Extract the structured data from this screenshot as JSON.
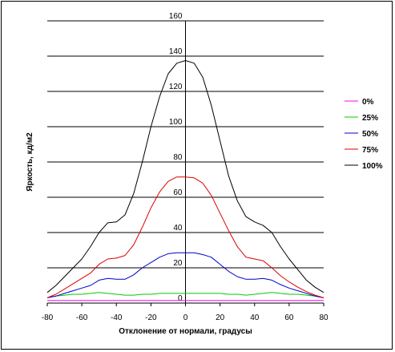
{
  "chart_data": {
    "type": "line",
    "title": "",
    "xlabel": "Отклонение от нормали, градусы",
    "ylabel": "Яркость, кд/м2",
    "xlim": [
      -80,
      80
    ],
    "ylim": [
      0,
      160
    ],
    "xticks": [
      -80,
      -60,
      -40,
      -20,
      0,
      20,
      40,
      60,
      80
    ],
    "yticks": [
      0,
      20,
      40,
      60,
      80,
      100,
      120,
      140,
      160
    ],
    "grid": "horizontal",
    "legend": "right",
    "x": [
      -80,
      -75,
      -70,
      -65,
      -60,
      -55,
      -50,
      -45,
      -40,
      -35,
      -30,
      -25,
      -20,
      -15,
      -10,
      -5,
      0,
      5,
      10,
      15,
      20,
      25,
      30,
      35,
      40,
      45,
      50,
      55,
      60,
      65,
      70,
      75,
      80
    ],
    "series": [
      {
        "name": "0%",
        "color": "#ff00ff",
        "values": [
          1.5,
          1.5,
          1.5,
          1.5,
          1.5,
          1.5,
          1.5,
          1.5,
          1.5,
          1.5,
          1.5,
          1.5,
          1.5,
          1.5,
          1.5,
          1.5,
          1.5,
          1.5,
          1.5,
          1.5,
          1.5,
          1.5,
          1.5,
          1.5,
          1.5,
          1.5,
          1.5,
          1.5,
          1.5,
          1.5,
          1.5,
          1.5,
          1.5
        ]
      },
      {
        "name": "25%",
        "color": "#00cc00",
        "values": [
          3,
          4,
          4.5,
          5,
          5,
          5.5,
          6,
          5.5,
          5,
          4.5,
          4.5,
          5,
          5,
          5.5,
          5.5,
          5.5,
          5.5,
          5.5,
          5.5,
          5.5,
          5.5,
          5,
          5,
          4.5,
          5,
          5.5,
          6,
          5.5,
          5,
          5,
          4.5,
          4,
          3
        ]
      },
      {
        "name": "50%",
        "color": "#0000cc",
        "values": [
          3,
          4,
          5.5,
          7,
          8.5,
          10,
          13,
          14,
          13.5,
          13.5,
          16,
          20,
          23,
          26,
          28,
          28.5,
          28.5,
          28.5,
          27.5,
          26,
          22,
          18,
          15,
          13.5,
          13.5,
          14,
          13,
          10.5,
          8.5,
          7,
          5.5,
          4,
          3
        ]
      },
      {
        "name": "75%",
        "color": "#dd0000",
        "values": [
          3,
          5,
          8,
          11,
          14,
          17,
          22,
          25,
          25.5,
          27,
          33,
          43,
          54,
          63,
          69,
          71.5,
          71.5,
          71,
          68,
          61,
          51,
          41,
          32,
          26,
          25,
          24,
          20,
          15.5,
          12,
          9,
          6.5,
          4.5,
          3
        ]
      },
      {
        "name": "100%",
        "color": "#000000",
        "values": [
          6,
          10,
          15,
          20,
          25,
          32,
          40,
          45.5,
          46,
          50,
          62,
          80,
          100,
          117,
          130,
          136,
          137.5,
          136,
          128,
          112,
          92,
          72,
          58,
          49,
          46,
          44,
          40,
          32,
          25,
          19,
          13,
          9,
          6
        ]
      }
    ]
  }
}
